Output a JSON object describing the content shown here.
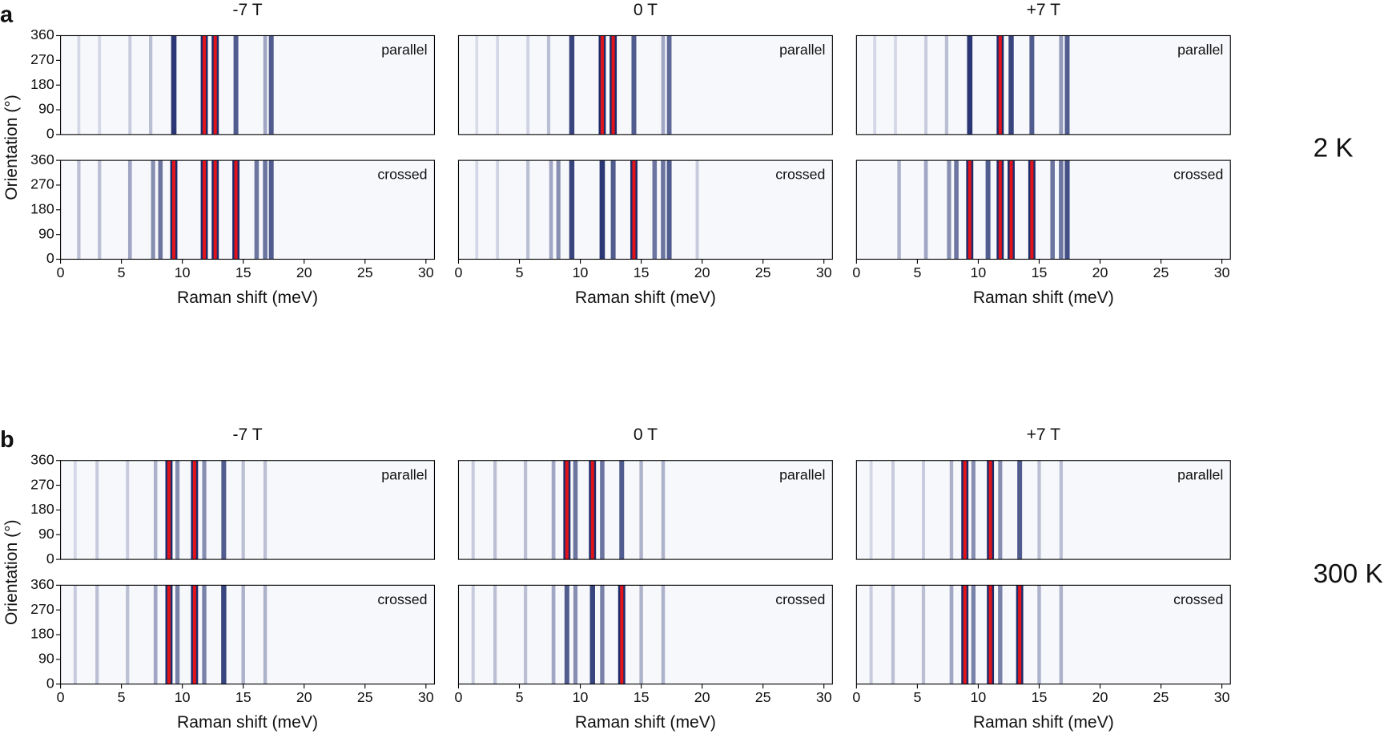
{
  "panel_labels": [
    "a",
    "b"
  ],
  "temperatures": [
    "2 K",
    "300 K"
  ],
  "chart_data": [
    {
      "type": "heatmap",
      "title": "-7 T",
      "label": "parallel",
      "ylabel": "Orientation (°)",
      "xlim": [
        0,
        30.7
      ],
      "ylim": [
        0,
        360
      ],
      "yticks": [
        0,
        90,
        180,
        270,
        360
      ],
      "colormap": [
        "#eef0f7",
        "#1d2b6b",
        "#e0141a"
      ],
      "x": [
        1.5,
        3.2,
        5.7,
        7.4,
        9.3,
        11.8,
        12.7,
        14.4,
        16.8,
        17.3
      ],
      "values": [
        0.1,
        0.1,
        0.15,
        0.2,
        0.75,
        0.9,
        1,
        0.6,
        0.3,
        0.6
      ]
    },
    {
      "type": "heatmap",
      "title": "0 T",
      "label": "parallel",
      "xlim": [
        0,
        30.7
      ],
      "ylim": [
        0,
        360
      ],
      "colormap": [
        "#eef0f7",
        "#1d2b6b",
        "#e0141a"
      ],
      "x": [
        1.5,
        3.2,
        5.7,
        7.4,
        9.3,
        11.8,
        12.7,
        14.4,
        16.8,
        17.3
      ],
      "values": [
        0.08,
        0.1,
        0.12,
        0.2,
        0.7,
        0.95,
        1,
        0.6,
        0.3,
        0.55
      ]
    },
    {
      "type": "heatmap",
      "title": "+7 T",
      "label": "parallel",
      "xlim": [
        0,
        30.7
      ],
      "ylim": [
        0,
        360
      ],
      "colormap": [
        "#eef0f7",
        "#1d2b6b",
        "#e0141a"
      ],
      "x": [
        1.5,
        3.2,
        5.7,
        7.4,
        9.3,
        11.8,
        12.7,
        14.4,
        16.8,
        17.3
      ],
      "values": [
        0.1,
        0.1,
        0.15,
        0.2,
        0.75,
        0.85,
        0.7,
        0.6,
        0.35,
        0.6
      ]
    },
    {
      "type": "heatmap",
      "label": "crossed",
      "xlabel": "Raman shift (meV)",
      "xlim": [
        0,
        30.7
      ],
      "ylim": [
        0,
        360
      ],
      "xticks": [
        0,
        5,
        10,
        15,
        20,
        25,
        30
      ],
      "yticks": [
        0,
        90,
        180,
        270,
        360
      ],
      "colormap": [
        "#eef0f7",
        "#1d2b6b",
        "#e0141a"
      ],
      "x": [
        1.5,
        3.2,
        5.7,
        7.6,
        8.2,
        9.3,
        11.8,
        12.7,
        14.4,
        16.1,
        16.8,
        17.3
      ],
      "values": [
        0.2,
        0.2,
        0.3,
        0.4,
        0.5,
        1,
        0.9,
        1,
        0.95,
        0.5,
        0.5,
        0.6
      ]
    },
    {
      "type": "heatmap",
      "label": "crossed",
      "xlabel": "Raman shift (meV)",
      "xlim": [
        0,
        30.7
      ],
      "ylim": [
        0,
        360
      ],
      "xticks": [
        0,
        5,
        10,
        15,
        20,
        25,
        30
      ],
      "colormap": [
        "#eef0f7",
        "#1d2b6b",
        "#e0141a"
      ],
      "x": [
        1.5,
        3.2,
        5.7,
        7.6,
        8.2,
        9.3,
        11.8,
        12.7,
        14.4,
        16.1,
        16.8,
        17.3,
        19.6
      ],
      "values": [
        0.1,
        0.12,
        0.2,
        0.3,
        0.4,
        0.7,
        0.75,
        0.6,
        0.95,
        0.5,
        0.5,
        0.6,
        0.15
      ]
    },
    {
      "type": "heatmap",
      "label": "crossed",
      "xlabel": "Raman shift (meV)",
      "xlim": [
        0,
        30.7
      ],
      "ylim": [
        0,
        360
      ],
      "xticks": [
        0,
        5,
        10,
        15,
        20,
        25,
        30
      ],
      "colormap": [
        "#eef0f7",
        "#1d2b6b",
        "#e0141a"
      ],
      "x": [
        3.5,
        5.7,
        7.6,
        8.2,
        9.3,
        10.8,
        11.8,
        12.7,
        14.4,
        16.1,
        16.8,
        17.3
      ],
      "values": [
        0.25,
        0.3,
        0.4,
        0.5,
        0.95,
        0.6,
        0.9,
        0.95,
        0.95,
        0.5,
        0.5,
        0.65
      ]
    },
    {
      "type": "heatmap",
      "title": "-7 T",
      "label": "parallel",
      "ylabel": "Orientation (°)",
      "xlim": [
        0,
        30.7
      ],
      "ylim": [
        0,
        360
      ],
      "yticks": [
        0,
        90,
        180,
        270,
        360
      ],
      "colormap": [
        "#eef0f7",
        "#1d2b6b",
        "#e0141a"
      ],
      "x": [
        1.2,
        3.0,
        5.5,
        7.8,
        8.9,
        9.6,
        11.0,
        11.8,
        13.4,
        15.0,
        16.8
      ],
      "values": [
        0.1,
        0.15,
        0.15,
        0.25,
        0.85,
        0.4,
        0.9,
        0.4,
        0.6,
        0.2,
        0.2
      ]
    },
    {
      "type": "heatmap",
      "title": "0 T",
      "label": "parallel",
      "xlim": [
        0,
        30.7
      ],
      "ylim": [
        0,
        360
      ],
      "colormap": [
        "#eef0f7",
        "#1d2b6b",
        "#e0141a"
      ],
      "x": [
        1.2,
        3.0,
        5.5,
        7.8,
        8.9,
        9.6,
        11.0,
        11.8,
        13.4,
        15.0,
        16.8
      ],
      "values": [
        0.15,
        0.2,
        0.2,
        0.3,
        1,
        0.5,
        1,
        0.5,
        0.6,
        0.25,
        0.25
      ]
    },
    {
      "type": "heatmap",
      "title": "+7 T",
      "label": "parallel",
      "xlim": [
        0,
        30.7
      ],
      "ylim": [
        0,
        360
      ],
      "colormap": [
        "#eef0f7",
        "#1d2b6b",
        "#e0141a"
      ],
      "x": [
        1.2,
        3.0,
        5.5,
        7.8,
        8.9,
        9.6,
        11.0,
        11.8,
        13.4,
        15.0,
        16.8
      ],
      "values": [
        0.1,
        0.15,
        0.15,
        0.25,
        0.85,
        0.4,
        0.9,
        0.4,
        0.6,
        0.2,
        0.2
      ]
    },
    {
      "type": "heatmap",
      "label": "crossed",
      "xlabel": "Raman shift (meV)",
      "xlim": [
        0,
        30.7
      ],
      "ylim": [
        0,
        360
      ],
      "xticks": [
        0,
        5,
        10,
        15,
        20,
        25,
        30
      ],
      "yticks": [
        0,
        90,
        180,
        270,
        360
      ],
      "colormap": [
        "#eef0f7",
        "#1d2b6b",
        "#e0141a"
      ],
      "x": [
        1.2,
        3.0,
        5.5,
        7.8,
        8.9,
        9.6,
        11.0,
        11.8,
        13.4,
        15.0,
        16.8
      ],
      "values": [
        0.15,
        0.2,
        0.2,
        0.3,
        0.85,
        0.45,
        0.95,
        0.45,
        0.7,
        0.25,
        0.25
      ]
    },
    {
      "type": "heatmap",
      "label": "crossed",
      "xlabel": "Raman shift (meV)",
      "xlim": [
        0,
        30.7
      ],
      "ylim": [
        0,
        360
      ],
      "xticks": [
        0,
        5,
        10,
        15,
        20,
        25,
        30
      ],
      "colormap": [
        "#eef0f7",
        "#1d2b6b",
        "#e0141a"
      ],
      "x": [
        1.2,
        3.0,
        5.5,
        7.8,
        8.9,
        9.6,
        11.0,
        11.8,
        13.4,
        15.0,
        16.8
      ],
      "values": [
        0.15,
        0.2,
        0.2,
        0.3,
        0.6,
        0.4,
        0.7,
        0.45,
        0.85,
        0.25,
        0.25
      ]
    },
    {
      "type": "heatmap",
      "label": "crossed",
      "xlabel": "Raman shift (meV)",
      "xlim": [
        0,
        30.7
      ],
      "ylim": [
        0,
        360
      ],
      "xticks": [
        0,
        5,
        10,
        15,
        20,
        25,
        30
      ],
      "colormap": [
        "#eef0f7",
        "#1d2b6b",
        "#e0141a"
      ],
      "x": [
        1.2,
        3.0,
        5.5,
        7.8,
        8.9,
        9.6,
        11.0,
        11.8,
        13.4,
        15.0,
        16.8
      ],
      "values": [
        0.15,
        0.2,
        0.2,
        0.3,
        0.8,
        0.45,
        0.9,
        0.45,
        0.8,
        0.25,
        0.25
      ]
    }
  ]
}
